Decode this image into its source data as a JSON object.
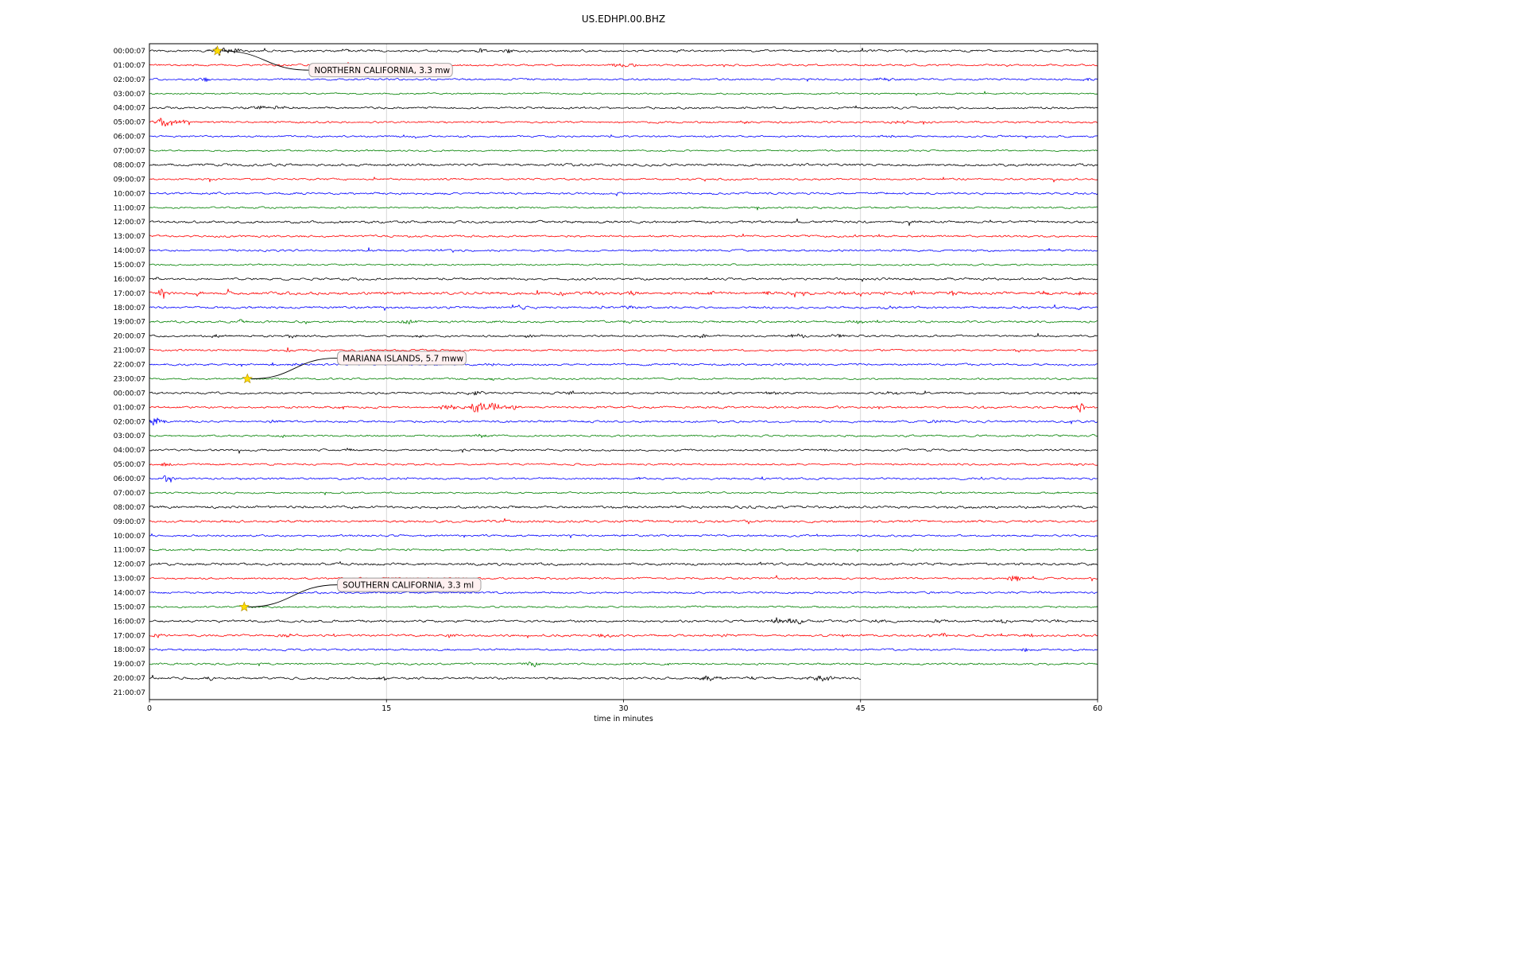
{
  "chart_data": {
    "type": "seismogram-dayplot",
    "title": "US.EDHPI.00.BHZ",
    "xlabel": "time in minutes",
    "x_ticks": [
      0,
      15,
      30,
      45,
      60
    ],
    "x_range_minutes": [
      0,
      60
    ],
    "minutes_per_row": 60,
    "trace_color_cycle": [
      "#000000",
      "#ff0000",
      "#0000ff",
      "#008000"
    ],
    "grid_color": "#cccccc",
    "event_marker_color": "#ffdd00",
    "annotation_box_fill": "#fff0f0",
    "rows": [
      {
        "label": "00:00:07",
        "amp": 1.0,
        "events": [
          {
            "x": 4.4,
            "a": 4.5,
            "w": 0.5
          },
          {
            "x": 5.3,
            "a": 2.5,
            "w": 1.0
          },
          {
            "x": 12.4,
            "a": 2.2,
            "w": 0.25
          },
          {
            "x": 21.0,
            "a": 2.8,
            "w": 0.35
          },
          {
            "x": 22.7,
            "a": 2.2,
            "w": 0.3
          },
          {
            "x": 33.5,
            "a": 1.8,
            "w": 0.3
          }
        ]
      },
      {
        "label": "01:00:07",
        "amp": 0.9,
        "events": [
          {
            "x": 29.6,
            "a": 2.6,
            "w": 0.5
          },
          {
            "x": 30.6,
            "a": 2.2,
            "w": 0.3
          }
        ]
      },
      {
        "label": "02:00:07",
        "amp": 0.9,
        "events": [
          {
            "x": 3.4,
            "a": 3.0,
            "w": 0.4
          },
          {
            "x": 46.5,
            "a": 1.6,
            "w": 1.5
          },
          {
            "x": 59.4,
            "a": 2.2,
            "w": 0.3
          }
        ]
      },
      {
        "label": "03:00:07",
        "amp": 0.75
      },
      {
        "label": "04:00:07",
        "amp": 1.0,
        "events": [
          {
            "x": 7.0,
            "a": 1.8,
            "w": 0.5
          },
          {
            "x": 8.3,
            "a": 2.2,
            "w": 0.6
          }
        ]
      },
      {
        "label": "05:00:07",
        "amp": 0.95,
        "events": [
          {
            "x": 0.9,
            "a": 5.5,
            "w": 0.45
          },
          {
            "x": 1.8,
            "a": 2.5,
            "w": 0.8
          },
          {
            "x": 37.6,
            "a": 1.6,
            "w": 0.4
          },
          {
            "x": 47.5,
            "a": 1.4,
            "w": 0.6
          }
        ]
      },
      {
        "label": "06:00:07",
        "amp": 0.85,
        "events": [
          {
            "x": 47.0,
            "a": 1.3,
            "w": 0.8
          }
        ]
      },
      {
        "label": "07:00:07",
        "amp": 0.75
      },
      {
        "label": "08:00:07",
        "amp": 1.15
      },
      {
        "label": "09:00:07",
        "amp": 0.9
      },
      {
        "label": "10:00:07",
        "amp": 1.0
      },
      {
        "label": "11:00:07",
        "amp": 0.85
      },
      {
        "label": "12:00:07",
        "amp": 1.15
      },
      {
        "label": "13:00:07",
        "amp": 0.95
      },
      {
        "label": "14:00:07",
        "amp": 0.95
      },
      {
        "label": "15:00:07",
        "amp": 0.8
      },
      {
        "label": "16:00:07",
        "amp": 1.05,
        "events": [
          {
            "x": 0.6,
            "a": 2.5,
            "w": 0.25
          }
        ]
      },
      {
        "label": "17:00:07",
        "amp": 1.3,
        "spiky": true,
        "events": [
          {
            "x": 0.8,
            "a": 6.0,
            "w": 0.3
          },
          {
            "x": 3.2,
            "a": 3.0,
            "w": 0.3
          },
          {
            "x": 10.5,
            "a": 2.5,
            "w": 0.3
          },
          {
            "x": 26.0,
            "a": 2.5,
            "w": 0.3
          },
          {
            "x": 28.5,
            "a": 2.5,
            "w": 0.3
          },
          {
            "x": 30.6,
            "a": 3.0,
            "w": 0.3
          },
          {
            "x": 35.5,
            "a": 2.5,
            "w": 0.3
          },
          {
            "x": 39.0,
            "a": 2.5,
            "w": 0.3
          },
          {
            "x": 41.5,
            "a": 3.0,
            "w": 0.3
          },
          {
            "x": 44.0,
            "a": 2.5,
            "w": 0.3
          },
          {
            "x": 46.5,
            "a": 2.5,
            "w": 0.3
          },
          {
            "x": 48.2,
            "a": 2.5,
            "w": 0.3
          },
          {
            "x": 50.8,
            "a": 3.0,
            "w": 0.3
          },
          {
            "x": 56.6,
            "a": 2.5,
            "w": 0.3
          },
          {
            "x": 59.0,
            "a": 3.0,
            "w": 0.3
          }
        ]
      },
      {
        "label": "18:00:07",
        "amp": 1.05,
        "events": [
          {
            "x": 23.5,
            "a": 2.0,
            "w": 0.4
          },
          {
            "x": 30.5,
            "a": 2.5,
            "w": 0.4
          },
          {
            "x": 47.0,
            "a": 1.8,
            "w": 0.4
          },
          {
            "x": 58.8,
            "a": 2.0,
            "w": 0.3
          }
        ]
      },
      {
        "label": "19:00:07",
        "amp": 0.95,
        "events": [
          {
            "x": 5.8,
            "a": 2.0,
            "w": 0.4
          },
          {
            "x": 10.0,
            "a": 1.8,
            "w": 0.4
          },
          {
            "x": 16.4,
            "a": 2.8,
            "w": 0.5
          },
          {
            "x": 21.8,
            "a": 1.8,
            "w": 0.4
          },
          {
            "x": 30.0,
            "a": 1.6,
            "w": 0.4
          },
          {
            "x": 44.8,
            "a": 2.2,
            "w": 0.5
          },
          {
            "x": 45.8,
            "a": 1.8,
            "w": 0.4
          }
        ]
      },
      {
        "label": "20:00:07",
        "amp": 0.95,
        "events": [
          {
            "x": 4.3,
            "a": 2.2,
            "w": 0.4
          },
          {
            "x": 9.0,
            "a": 1.8,
            "w": 0.4
          },
          {
            "x": 17.0,
            "a": 1.8,
            "w": 0.4
          },
          {
            "x": 24.0,
            "a": 1.8,
            "w": 0.4
          },
          {
            "x": 35.0,
            "a": 2.2,
            "w": 0.4
          },
          {
            "x": 41.0,
            "a": 2.8,
            "w": 0.5
          },
          {
            "x": 43.6,
            "a": 2.4,
            "w": 0.4
          }
        ]
      },
      {
        "label": "21:00:07",
        "amp": 0.9,
        "events": [
          {
            "x": 8.8,
            "a": 3.0,
            "w": 0.35
          },
          {
            "x": 55.0,
            "a": 1.6,
            "w": 0.4
          }
        ]
      },
      {
        "label": "22:00:07",
        "amp": 0.95,
        "events": [
          {
            "x": 9.0,
            "a": 1.6,
            "w": 0.3
          },
          {
            "x": 21.6,
            "a": 1.8,
            "w": 0.3
          },
          {
            "x": 30.4,
            "a": 1.6,
            "w": 0.3
          }
        ]
      },
      {
        "label": "23:00:07",
        "amp": 0.85,
        "events": [
          {
            "x": 21.7,
            "a": 1.6,
            "w": 0.4
          }
        ]
      },
      {
        "label": "00:00:07",
        "amp": 1.0,
        "events": [
          {
            "x": 20.8,
            "a": 2.6,
            "w": 0.5
          },
          {
            "x": 26.6,
            "a": 3.5,
            "w": 0.3
          },
          {
            "x": 39.4,
            "a": 2.2,
            "w": 0.4
          },
          {
            "x": 47.0,
            "a": 1.8,
            "w": 0.4
          },
          {
            "x": 58.6,
            "a": 2.2,
            "w": 0.4
          }
        ]
      },
      {
        "label": "01:00:07",
        "amp": 1.0,
        "events": [
          {
            "x": 12.2,
            "a": 2.2,
            "w": 0.3
          },
          {
            "x": 19.0,
            "a": 2.8,
            "w": 0.8
          },
          {
            "x": 20.8,
            "a": 6.5,
            "w": 0.5
          },
          {
            "x": 21.7,
            "a": 5.0,
            "w": 0.6
          },
          {
            "x": 23.0,
            "a": 2.8,
            "w": 0.5
          },
          {
            "x": 58.9,
            "a": 7.0,
            "w": 0.25
          }
        ]
      },
      {
        "label": "02:00:07",
        "amp": 1.0,
        "events": [
          {
            "x": 0.5,
            "a": 5.0,
            "w": 0.5
          },
          {
            "x": 7.8,
            "a": 2.4,
            "w": 0.3
          },
          {
            "x": 50.0,
            "a": 1.5,
            "w": 1.0
          }
        ]
      },
      {
        "label": "03:00:07",
        "amp": 0.85,
        "events": [
          {
            "x": 8.3,
            "a": 1.8,
            "w": 0.4
          },
          {
            "x": 21.0,
            "a": 1.6,
            "w": 0.4
          }
        ]
      },
      {
        "label": "04:00:07",
        "amp": 0.95,
        "events": [
          {
            "x": 12.6,
            "a": 1.8,
            "w": 0.3
          },
          {
            "x": 21.2,
            "a": 1.8,
            "w": 0.3
          }
        ]
      },
      {
        "label": "05:00:07",
        "amp": 0.9,
        "events": [
          {
            "x": 1.0,
            "a": 2.6,
            "w": 0.3
          },
          {
            "x": 58.6,
            "a": 2.6,
            "w": 0.3
          }
        ]
      },
      {
        "label": "06:00:07",
        "amp": 0.95,
        "events": [
          {
            "x": 1.1,
            "a": 5.5,
            "w": 0.45
          },
          {
            "x": 16.0,
            "a": 1.6,
            "w": 0.3
          },
          {
            "x": 31.0,
            "a": 1.5,
            "w": 0.3
          }
        ]
      },
      {
        "label": "07:00:07",
        "amp": 0.8
      },
      {
        "label": "08:00:07",
        "amp": 1.2
      },
      {
        "label": "09:00:07",
        "amp": 1.15
      },
      {
        "label": "10:00:07",
        "amp": 0.95
      },
      {
        "label": "11:00:07",
        "amp": 0.9
      },
      {
        "label": "12:00:07",
        "amp": 1.2
      },
      {
        "label": "13:00:07",
        "amp": 0.95,
        "events": [
          {
            "x": 54.8,
            "a": 3.5,
            "w": 0.5
          }
        ]
      },
      {
        "label": "14:00:07",
        "amp": 0.95,
        "events": [
          {
            "x": 56.4,
            "a": 1.8,
            "w": 0.3
          }
        ]
      },
      {
        "label": "15:00:07",
        "amp": 0.85
      },
      {
        "label": "16:00:07",
        "amp": 1.1,
        "events": [
          {
            "x": 39.8,
            "a": 5.5,
            "w": 0.4
          },
          {
            "x": 40.8,
            "a": 3.5,
            "w": 0.6
          },
          {
            "x": 46.3,
            "a": 2.2,
            "w": 0.4
          },
          {
            "x": 49.8,
            "a": 1.8,
            "w": 0.4
          },
          {
            "x": 54.0,
            "a": 2.8,
            "w": 0.5
          },
          {
            "x": 58.0,
            "a": 1.6,
            "w": 0.3
          }
        ]
      },
      {
        "label": "17:00:07",
        "amp": 1.05,
        "events": [
          {
            "x": 0.5,
            "a": 2.6,
            "w": 0.3
          },
          {
            "x": 8.7,
            "a": 2.8,
            "w": 0.35
          },
          {
            "x": 19.0,
            "a": 2.2,
            "w": 0.3
          },
          {
            "x": 28.8,
            "a": 3.2,
            "w": 0.4
          },
          {
            "x": 36.5,
            "a": 2.2,
            "w": 0.3
          },
          {
            "x": 44.0,
            "a": 2.2,
            "w": 0.3
          },
          {
            "x": 50.3,
            "a": 2.2,
            "w": 0.3
          },
          {
            "x": 55.6,
            "a": 1.8,
            "w": 0.3
          }
        ]
      },
      {
        "label": "18:00:07",
        "amp": 0.95,
        "events": [
          {
            "x": 55.4,
            "a": 2.2,
            "w": 0.3
          }
        ]
      },
      {
        "label": "19:00:07",
        "amp": 0.9,
        "events": [
          {
            "x": 24.3,
            "a": 2.6,
            "w": 0.6
          }
        ]
      },
      {
        "label": "20:00:07",
        "amp": 1.0,
        "end": 45,
        "events": [
          {
            "x": 3.8,
            "a": 2.6,
            "w": 0.4
          },
          {
            "x": 14.8,
            "a": 2.2,
            "w": 0.4
          },
          {
            "x": 35.5,
            "a": 3.0,
            "w": 0.8
          },
          {
            "x": 38.0,
            "a": 2.0,
            "w": 0.5
          },
          {
            "x": 42.5,
            "a": 3.5,
            "w": 0.9
          }
        ]
      },
      {
        "label": "21:00:07",
        "amp": 0,
        "end": 0
      }
    ],
    "annotations": [
      {
        "label": "NORTHERN CALIFORNIA, 3.3 mw",
        "row": 0,
        "x_minutes": 4.3,
        "box_row": 1.35,
        "box_x_minutes": 10.1
      },
      {
        "label": "MARIANA ISLANDS, 5.7 mww",
        "row": 23,
        "x_minutes": 6.2,
        "box_row": 21.55,
        "box_x_minutes": 11.9
      },
      {
        "label": "SOUTHERN CALIFORNIA, 3.3 ml",
        "row": 39,
        "x_minutes": 6.0,
        "box_row": 37.45,
        "box_x_minutes": 11.9
      }
    ]
  }
}
